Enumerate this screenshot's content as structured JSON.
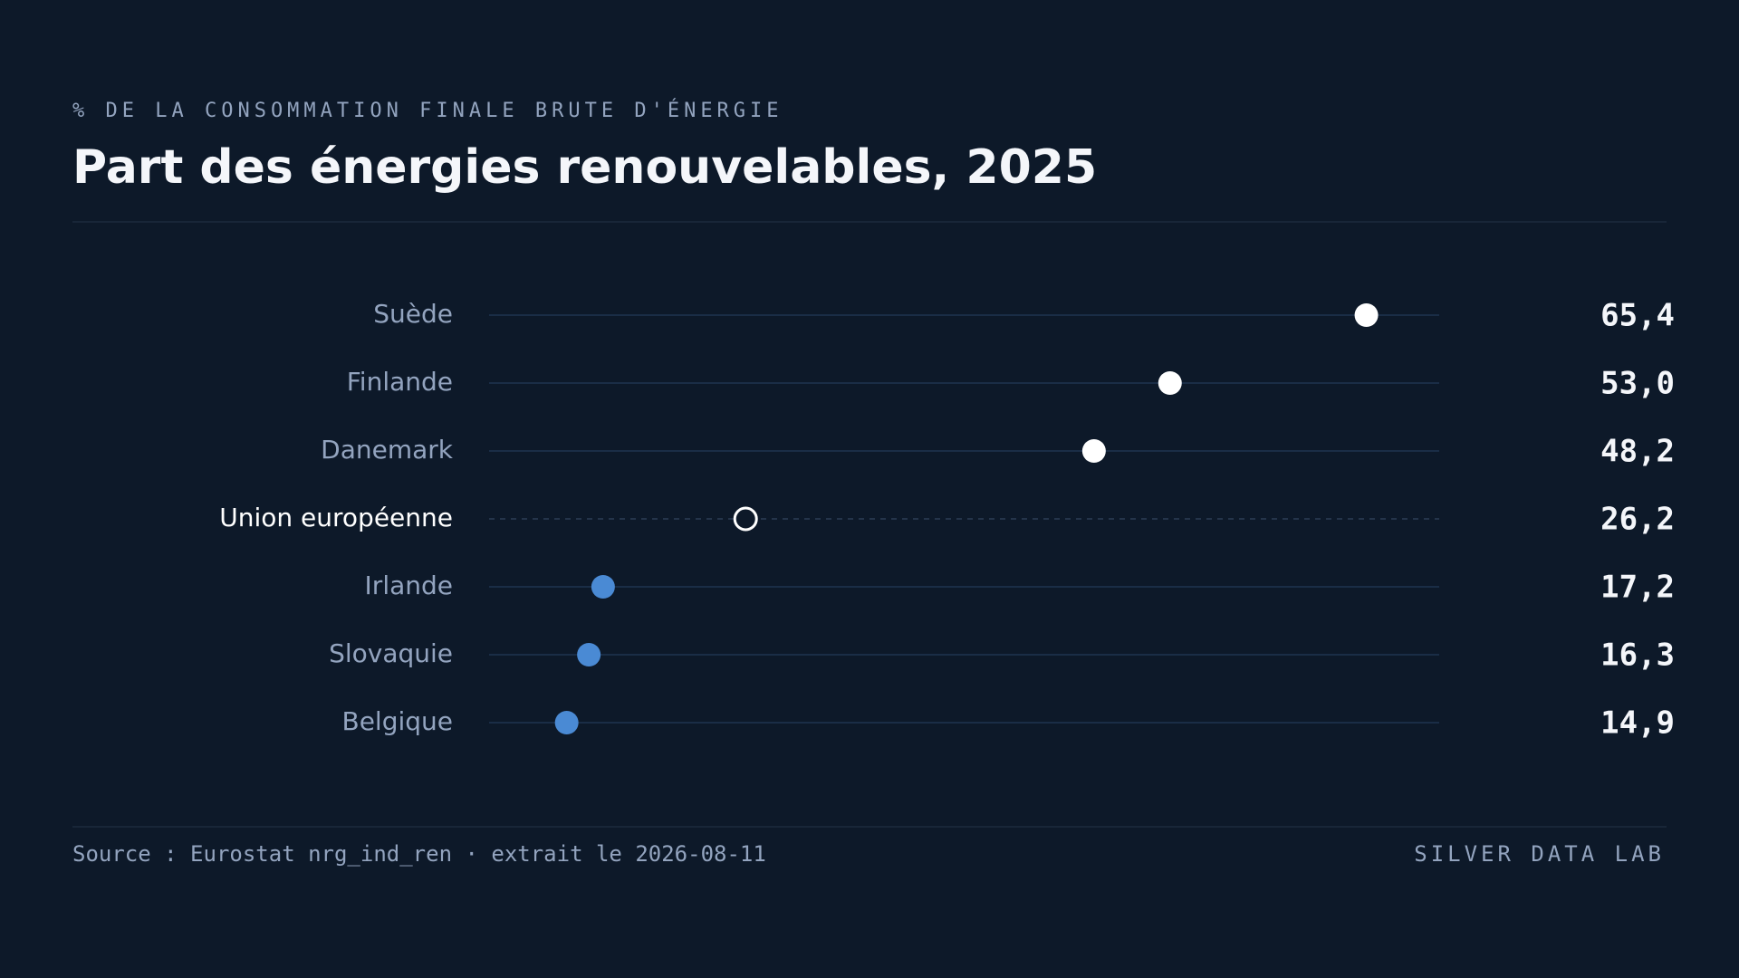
{
  "subtitle": "% DE LA CONSOMMATION FINALE BRUTE D'ÉNERGIE",
  "chart_data": {
    "type": "dot",
    "title": "Part des énergies renouvelables, 2025",
    "categories": [
      "Suède",
      "Finlande",
      "Danemark",
      "Union européenne",
      "Irlande",
      "Slovaquie",
      "Belgique"
    ],
    "values": [
      65.4,
      53.0,
      48.2,
      26.2,
      17.2,
      16.3,
      14.9
    ],
    "value_labels": [
      "65,4",
      "53,0",
      "48,2",
      "26,2",
      "17,2",
      "16,3",
      "14,9"
    ],
    "colors": [
      "#ffffff",
      "#ffffff",
      "#ffffff",
      "#ffffff",
      "#4a8ad4",
      "#4a8ad4",
      "#4a8ad4"
    ],
    "marker_styles": [
      "filled",
      "filled",
      "filled",
      "hollow",
      "filled",
      "filled",
      "filled"
    ],
    "xlim": [
      10,
      70
    ]
  },
  "footer": {
    "source": "Source : Eurostat nrg_ind_ren · extrait le 2026-08-11",
    "brand": "SILVER DATA LAB"
  }
}
